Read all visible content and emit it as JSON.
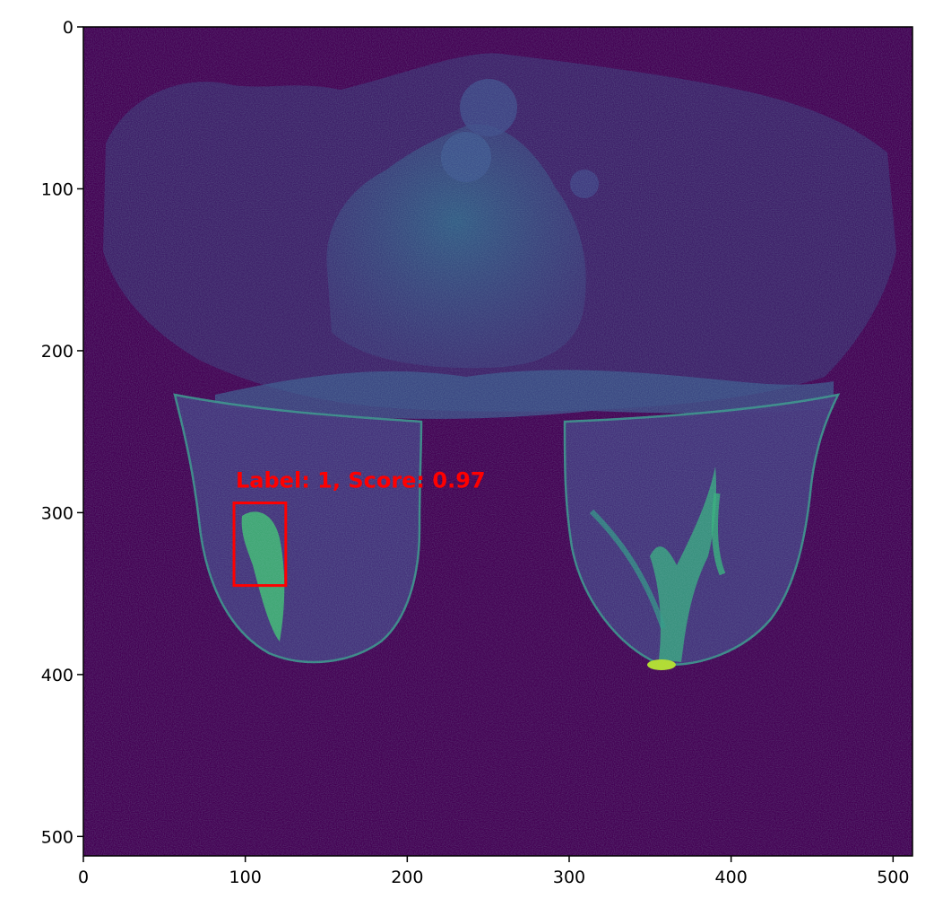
{
  "image": {
    "type": "mri-image-with-detection",
    "colormap": "viridis",
    "extent": {
      "x": [
        0,
        512
      ],
      "y": [
        512,
        0
      ]
    },
    "background_color": "#440154"
  },
  "axes": {
    "x_ticks": [
      {
        "value": 0,
        "label": "0"
      },
      {
        "value": 100,
        "label": "100"
      },
      {
        "value": 200,
        "label": "200"
      },
      {
        "value": 300,
        "label": "300"
      },
      {
        "value": 400,
        "label": "400"
      },
      {
        "value": 500,
        "label": "500"
      }
    ],
    "y_ticks": [
      {
        "value": 0,
        "label": "0"
      },
      {
        "value": 100,
        "label": "100"
      },
      {
        "value": 200,
        "label": "200"
      },
      {
        "value": 300,
        "label": "300"
      },
      {
        "value": 400,
        "label": "400"
      },
      {
        "value": 500,
        "label": "500"
      }
    ]
  },
  "detection": {
    "label_text": "Label: 1, Score: 0.97",
    "label": 1,
    "score": 0.97,
    "box": {
      "x0": 93,
      "y0": 294,
      "x1": 125,
      "y1": 345
    },
    "color": "#ff0000"
  }
}
